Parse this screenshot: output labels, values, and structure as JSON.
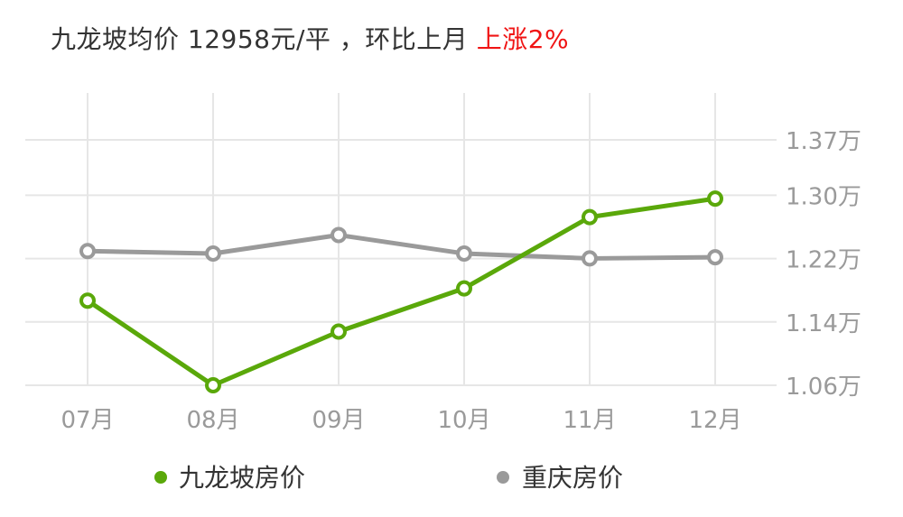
{
  "headline": {
    "prefix": "九龙坡均价 12958元/平 ，环比上月 ",
    "change": "上涨2%"
  },
  "colors": {
    "series_1": "#5aa80a",
    "series_2": "#9a9a9a",
    "rise_text": "#f01414",
    "grid": "#e6e6e6",
    "axis_text": "#9a9a9a"
  },
  "chart_data": {
    "type": "line",
    "categories": [
      "07月",
      "08月",
      "09月",
      "10月",
      "11月",
      "12月"
    ],
    "y_ticks": [
      1.06,
      1.14,
      1.22,
      1.3,
      1.37
    ],
    "y_tick_labels": [
      "1.06万",
      "1.14万",
      "1.22万",
      "1.30万",
      "1.37万"
    ],
    "ylim": [
      1.06,
      1.37
    ],
    "grid": true,
    "legend_position": "bottom",
    "series": [
      {
        "name": "九龙坡房价",
        "values": [
          1.1669,
          1.06,
          1.1278,
          1.1824,
          1.2724,
          1.2958
        ]
      },
      {
        "name": "重庆房价",
        "values": [
          1.2295,
          1.2264,
          1.2498,
          1.2264,
          1.2202,
          1.2217
        ]
      }
    ]
  }
}
